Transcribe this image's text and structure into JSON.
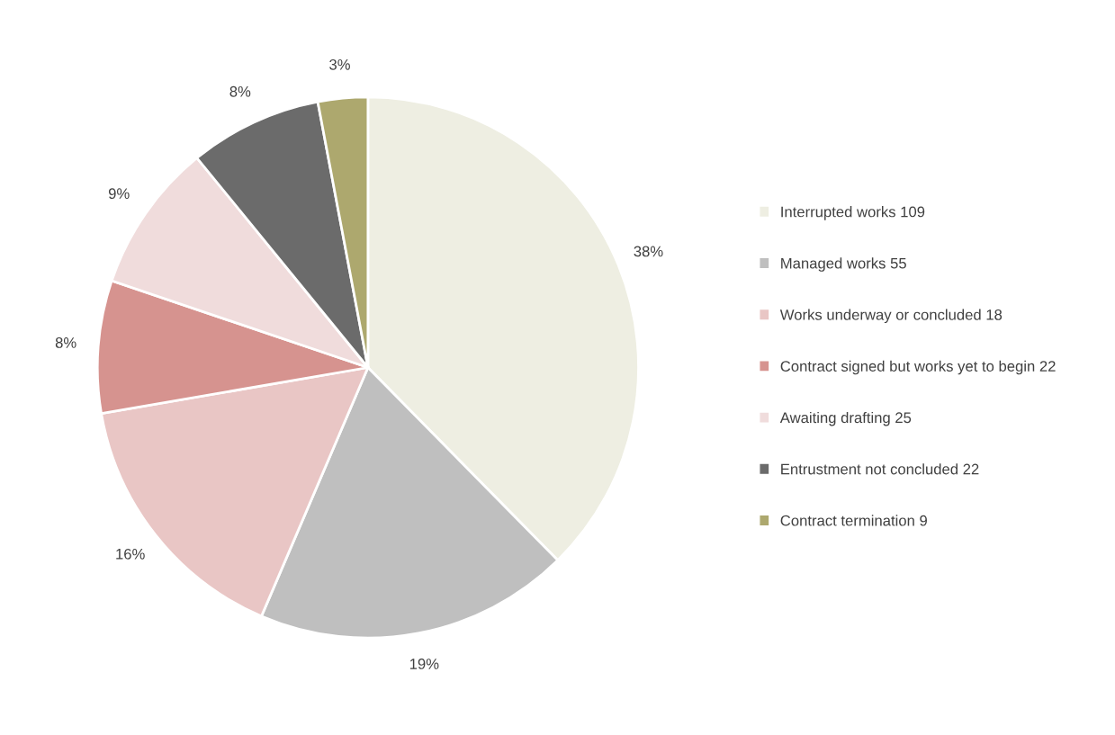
{
  "chart_data": {
    "type": "pie",
    "categories": [
      "Interrupted works 109",
      "Managed works 55",
      "Works underway or concluded 18",
      "Contract signed but works yet to begin 22",
      "Awaiting drafting 25",
      "Entrustment not concluded 22",
      "Contract termination 9"
    ],
    "values": [
      38,
      19,
      16,
      8,
      9,
      8,
      3
    ],
    "value_labels": [
      "38%",
      "19%",
      "16%",
      "8%",
      "9%",
      "8%",
      "3%"
    ],
    "colors": [
      "#eeeee2",
      "#bfbfbf",
      "#e9c6c5",
      "#d6938f",
      "#f0dcdc",
      "#6b6b6b",
      "#ada86e"
    ],
    "legend": "right"
  }
}
